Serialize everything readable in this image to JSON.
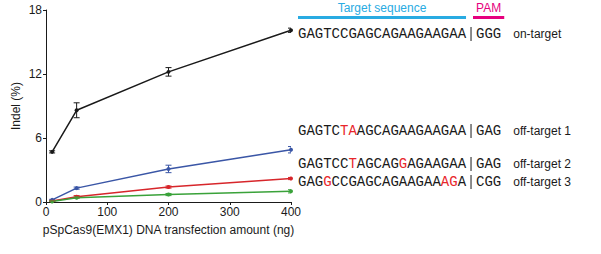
{
  "chart_data": {
    "type": "line",
    "xlabel": "pSpCas9(EMX1) DNA transfection amount (ng)",
    "ylabel": "Indel (%)",
    "x": [
      10,
      50,
      200,
      400
    ],
    "xlim": [
      0,
      400
    ],
    "xticks": [
      0,
      100,
      200,
      300,
      400
    ],
    "ylim": [
      0,
      18
    ],
    "yticks": [
      0,
      6,
      12,
      18
    ],
    "grid": false,
    "marker": "circle",
    "series": [
      {
        "name": "on-target",
        "color": "#1a1a1a",
        "values": [
          4.7,
          8.6,
          12.2,
          16.1
        ],
        "errors": [
          0.1,
          0.7,
          0.4,
          0.2
        ],
        "sequence": [
          {
            "text": "GAGTCCGAGCAGAAGAAGAA"
          }
        ],
        "pam": "GGG"
      },
      {
        "name": "off-target 1",
        "color": "#3a56a6",
        "values": [
          0.2,
          1.3,
          3.1,
          4.9
        ],
        "errors": [
          0.05,
          0.1,
          0.35,
          0.3
        ],
        "sequence": [
          {
            "text": "GAGTC"
          },
          {
            "text": "TA",
            "mismatch": true
          },
          {
            "text": "AGCAGAAGAAGAA"
          }
        ],
        "pam": "GAG"
      },
      {
        "name": "off-target 2",
        "color": "#d7262b",
        "values": [
          0.1,
          0.5,
          1.4,
          2.2
        ],
        "errors": [
          0.05,
          0.1,
          0.1,
          0.1
        ],
        "sequence": [
          {
            "text": "GAGTCC"
          },
          {
            "text": "T",
            "mismatch": true
          },
          {
            "text": "AGCAG"
          },
          {
            "text": "G",
            "mismatch": true
          },
          {
            "text": "AGAAGAA"
          }
        ],
        "pam": "GAG"
      },
      {
        "name": "off-target 3",
        "color": "#3aa23a",
        "values": [
          0.05,
          0.4,
          0.7,
          1.0
        ],
        "errors": [
          0.05,
          0.05,
          0.1,
          0.15
        ],
        "sequence": [
          {
            "text": "GAG"
          },
          {
            "text": "G",
            "mismatch": true
          },
          {
            "text": "CCGAGCAGAAGAA"
          },
          {
            "text": "AG",
            "mismatch": true
          },
          {
            "text": "A"
          }
        ],
        "pam": "CGG"
      }
    ],
    "annotations": {
      "target": {
        "text": "Target sequence",
        "color": "#29abe2"
      },
      "pam": {
        "text": "PAM",
        "color": "#e6007e"
      },
      "mismatch_color": "#e8262b"
    }
  }
}
